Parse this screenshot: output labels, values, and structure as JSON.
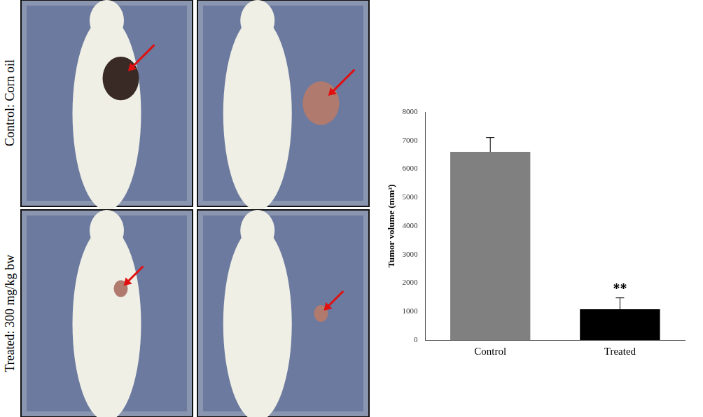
{
  "chart_data": {
    "type": "bar",
    "categories": [
      "Control",
      "Treated"
    ],
    "values": [
      6600,
      1080
    ],
    "errors": [
      500,
      400
    ],
    "colors": [
      "#808080",
      "#000000"
    ],
    "y_label": "Tumor volume (mm³)",
    "ylim": [
      0,
      8000
    ],
    "yticks": [
      0,
      1000,
      2000,
      3000,
      4000,
      5000,
      6000,
      7000,
      8000
    ],
    "grid": false,
    "annotations": [
      {
        "category": "Treated",
        "text": "**"
      }
    ]
  },
  "figure": {
    "row_labels": [
      "Control: Corn oil",
      "Treated: 300 mg/kg bw"
    ]
  }
}
